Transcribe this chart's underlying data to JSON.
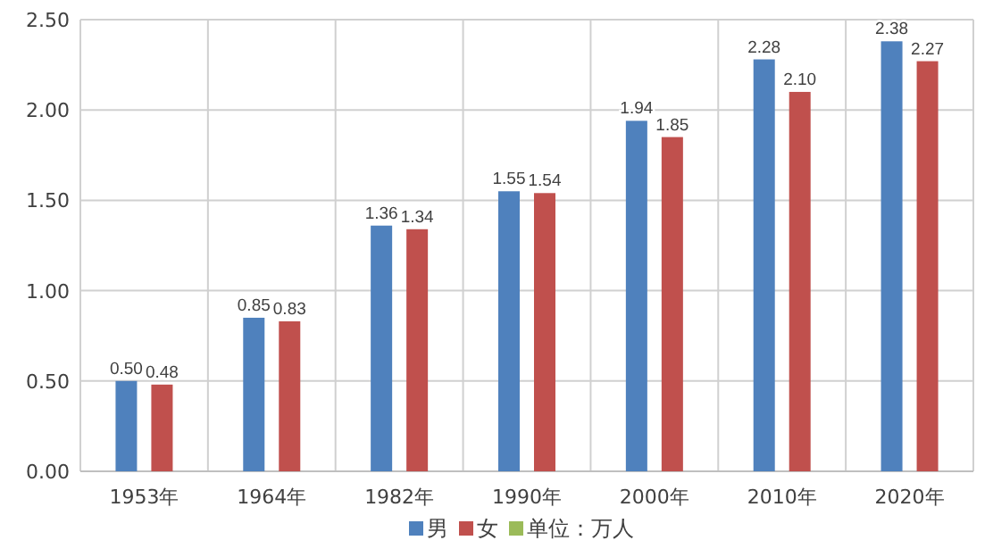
{
  "chart_data": {
    "type": "bar",
    "categories": [
      "1953年",
      "1964年",
      "1982年",
      "1990年",
      "2000年",
      "2010年",
      "2020年"
    ],
    "series": [
      {
        "name": "男",
        "color": "#4f81bd",
        "values": [
          0.5,
          0.85,
          1.36,
          1.55,
          1.94,
          2.28,
          2.38
        ],
        "value_labels": [
          "0.50",
          "0.85",
          "1.36",
          "1.55",
          "1.94",
          "2.28",
          "2.38"
        ]
      },
      {
        "name": "女",
        "color": "#c0504d",
        "values": [
          0.48,
          0.83,
          1.34,
          1.54,
          1.85,
          2.1,
          2.27
        ],
        "value_labels": [
          "0.48",
          "0.83",
          "1.34",
          "1.54",
          "1.85",
          "2.10",
          "2.27"
        ]
      },
      {
        "name": "单位：万人",
        "color": "#9bbb59",
        "values": [
          null,
          null,
          null,
          null,
          null,
          null,
          null
        ]
      }
    ],
    "ylim": [
      0,
      2.5
    ],
    "yticks": [
      {
        "value": 0,
        "label": "0.00"
      },
      {
        "value": 0.5,
        "label": "0.50"
      },
      {
        "value": 1,
        "label": "1.00"
      },
      {
        "value": 1.5,
        "label": "1.50"
      },
      {
        "value": 2,
        "label": "2.00"
      },
      {
        "value": 2.5,
        "label": "2.50"
      }
    ],
    "grid": true,
    "legend": "bottom"
  }
}
